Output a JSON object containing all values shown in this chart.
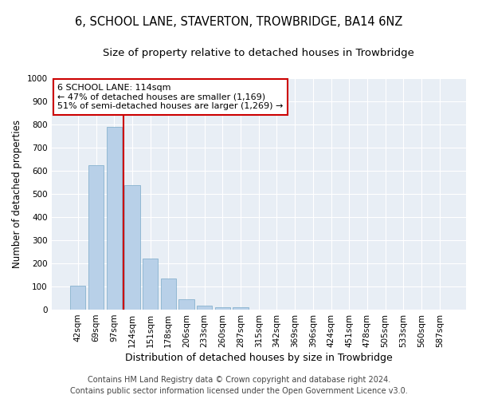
{
  "title": "6, SCHOOL LANE, STAVERTON, TROWBRIDGE, BA14 6NZ",
  "subtitle": "Size of property relative to detached houses in Trowbridge",
  "xlabel": "Distribution of detached houses by size in Trowbridge",
  "ylabel": "Number of detached properties",
  "categories": [
    "42sqm",
    "69sqm",
    "97sqm",
    "124sqm",
    "151sqm",
    "178sqm",
    "206sqm",
    "233sqm",
    "260sqm",
    "287sqm",
    "315sqm",
    "342sqm",
    "369sqm",
    "396sqm",
    "424sqm",
    "451sqm",
    "478sqm",
    "505sqm",
    "533sqm",
    "560sqm",
    "587sqm"
  ],
  "values": [
    103,
    623,
    789,
    538,
    221,
    135,
    46,
    18,
    12,
    10,
    0,
    0,
    0,
    0,
    0,
    0,
    0,
    0,
    0,
    0,
    0
  ],
  "bar_color": "#b8d0e8",
  "bar_edge_color": "#7aaac8",
  "vline_color": "#cc0000",
  "vline_x_idx": 2.5,
  "annotation_text": "6 SCHOOL LANE: 114sqm\n← 47% of detached houses are smaller (1,169)\n51% of semi-detached houses are larger (1,269) →",
  "annotation_box_color": "#ffffff",
  "annotation_box_edge_color": "#cc0000",
  "ylim": [
    0,
    1000
  ],
  "yticks": [
    0,
    100,
    200,
    300,
    400,
    500,
    600,
    700,
    800,
    900,
    1000
  ],
  "plot_bg_color": "#e8eef5",
  "fig_bg_color": "#ffffff",
  "grid_color": "#ffffff",
  "footer_line1": "Contains HM Land Registry data © Crown copyright and database right 2024.",
  "footer_line2": "Contains public sector information licensed under the Open Government Licence v3.0.",
  "title_fontsize": 10.5,
  "subtitle_fontsize": 9.5,
  "xlabel_fontsize": 9,
  "ylabel_fontsize": 8.5,
  "tick_fontsize": 7.5,
  "annotation_fontsize": 8,
  "footer_fontsize": 7
}
